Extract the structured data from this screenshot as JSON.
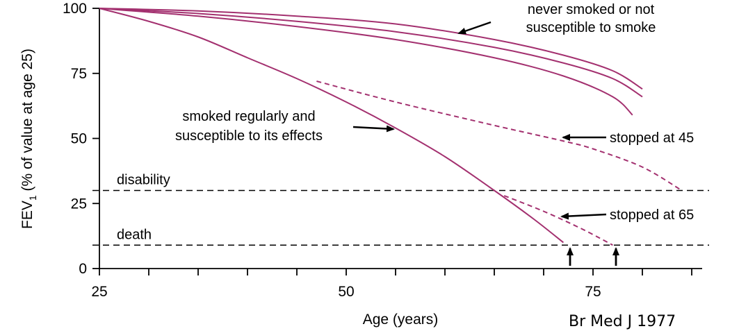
{
  "chart_data": {
    "type": "line",
    "xlabel": "Age (years)",
    "ylabel": "FEV1 (% of value at age 25)",
    "xlim": [
      25,
      86
    ],
    "ylim": [
      0,
      100
    ],
    "x_ticks": [
      25,
      50,
      75
    ],
    "y_ticks": [
      0,
      25,
      50,
      75,
      100
    ],
    "grid": false,
    "colors": {
      "series": "#a3306f",
      "axis": "#000000"
    },
    "series": [
      {
        "style": "solid",
        "points": [
          [
            25,
            100
          ],
          [
            35,
            99
          ],
          [
            45,
            97
          ],
          [
            55,
            94
          ],
          [
            65,
            88
          ],
          [
            72,
            82
          ],
          [
            77,
            76
          ],
          [
            80,
            69
          ]
        ]
      },
      {
        "style": "solid",
        "points": [
          [
            25,
            100
          ],
          [
            35,
            98
          ],
          [
            45,
            95
          ],
          [
            55,
            91
          ],
          [
            65,
            85
          ],
          [
            72,
            79
          ],
          [
            77,
            73
          ],
          [
            80,
            66
          ]
        ]
      },
      {
        "style": "solid",
        "points": [
          [
            25,
            100
          ],
          [
            35,
            97
          ],
          [
            45,
            93
          ],
          [
            55,
            88
          ],
          [
            65,
            81
          ],
          [
            72,
            74
          ],
          [
            77,
            66
          ],
          [
            79,
            59
          ]
        ]
      },
      {
        "style": "solid",
        "points": [
          [
            25,
            100
          ],
          [
            30,
            95
          ],
          [
            35,
            89
          ],
          [
            40,
            81
          ],
          [
            45,
            73
          ],
          [
            50,
            64
          ],
          [
            55,
            54
          ],
          [
            60,
            43
          ],
          [
            65,
            30
          ],
          [
            69,
            19
          ],
          [
            72,
            10
          ]
        ]
      },
      {
        "style": "dashed",
        "points": [
          [
            47,
            72
          ],
          [
            55,
            64
          ],
          [
            65,
            55
          ],
          [
            72,
            49
          ],
          [
            75,
            46
          ],
          [
            80,
            39
          ],
          [
            84,
            30
          ]
        ]
      },
      {
        "style": "dashed",
        "points": [
          [
            66,
            28
          ],
          [
            70,
            22
          ],
          [
            74,
            15
          ],
          [
            77,
            9
          ]
        ]
      }
    ],
    "reference_lines": [
      {
        "y": 30,
        "label": "disability"
      },
      {
        "y": 9,
        "label": "death"
      }
    ],
    "annotations": {
      "never_smoked": [
        "never smoked or not",
        "susceptible to smoke"
      ],
      "smoked_regularly": [
        "smoked regularly and",
        "susceptible to its effects"
      ],
      "stopped_45": "stopped at 45",
      "stopped_65": "stopped at 65"
    },
    "source": "Br Med J 1977"
  }
}
